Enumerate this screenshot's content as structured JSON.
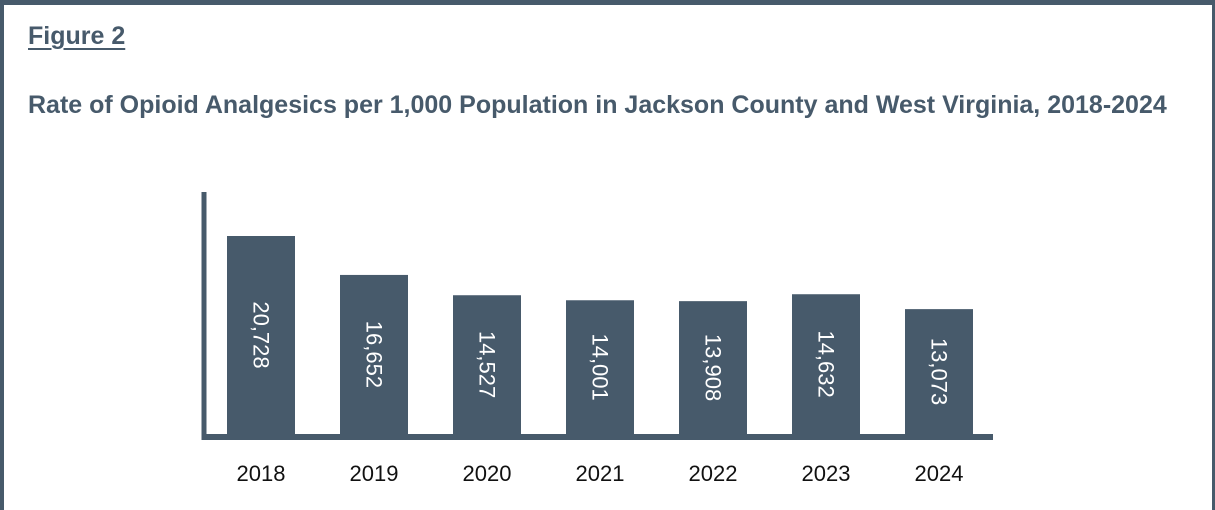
{
  "figure_label": "Figure 2",
  "colors": {
    "bar": "#475a6b",
    "axis": "#475a6b",
    "text": "#475a6b",
    "label_text": "#ffffff",
    "tick_text": "#111111"
  },
  "chart_data": {
    "type": "bar",
    "title": "Rate of Opioid Analgesics per 1,000 Population in Jackson County and West Virginia, 2018-2024",
    "categories": [
      "2018",
      "2019",
      "2020",
      "2021",
      "2022",
      "2023",
      "2024"
    ],
    "values": [
      20728,
      16652,
      14527,
      14001,
      13908,
      14632,
      13073
    ],
    "data_labels": [
      "20,728",
      "16,652",
      "14,527",
      "14,001",
      "13,908",
      "14,632",
      "13,073"
    ],
    "data_label_orientation": "rotated vertical, inside bar",
    "xlabel": "",
    "ylabel": "",
    "ylim": [
      0,
      25000
    ],
    "grid": false,
    "legend": "none"
  }
}
